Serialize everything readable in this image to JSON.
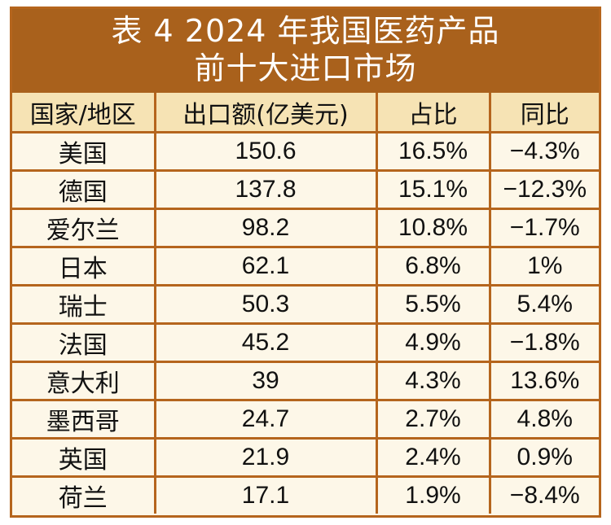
{
  "title": {
    "line1": "表 4  2024 年我国医药产品",
    "line2": "前十大进口市场"
  },
  "colors": {
    "border": "#b5651d",
    "title_bg": "#a9611c",
    "header_bg": "#f6e3b4",
    "body_bg": "#fdf7e8"
  },
  "table": {
    "headers": [
      "国家/地区",
      "出口额(亿美元)",
      "占比",
      "同比"
    ],
    "rows": [
      [
        "美国",
        "150.6",
        "16.5%",
        "−4.3%"
      ],
      [
        "德国",
        "137.8",
        "15.1%",
        "−12.3%"
      ],
      [
        "爱尔兰",
        "98.2",
        "10.8%",
        "−1.7%"
      ],
      [
        "日本",
        "62.1",
        "6.8%",
        "1%"
      ],
      [
        "瑞士",
        "50.3",
        "5.5%",
        "5.4%"
      ],
      [
        "法国",
        "45.2",
        "4.9%",
        "−1.8%"
      ],
      [
        "意大利",
        "39",
        "4.3%",
        "13.6%"
      ],
      [
        "墨西哥",
        "24.7",
        "2.7%",
        "4.8%"
      ],
      [
        "英国",
        "21.9",
        "2.4%",
        "0.9%"
      ],
      [
        "荷兰",
        "17.1",
        "1.9%",
        "−8.4%"
      ]
    ]
  }
}
